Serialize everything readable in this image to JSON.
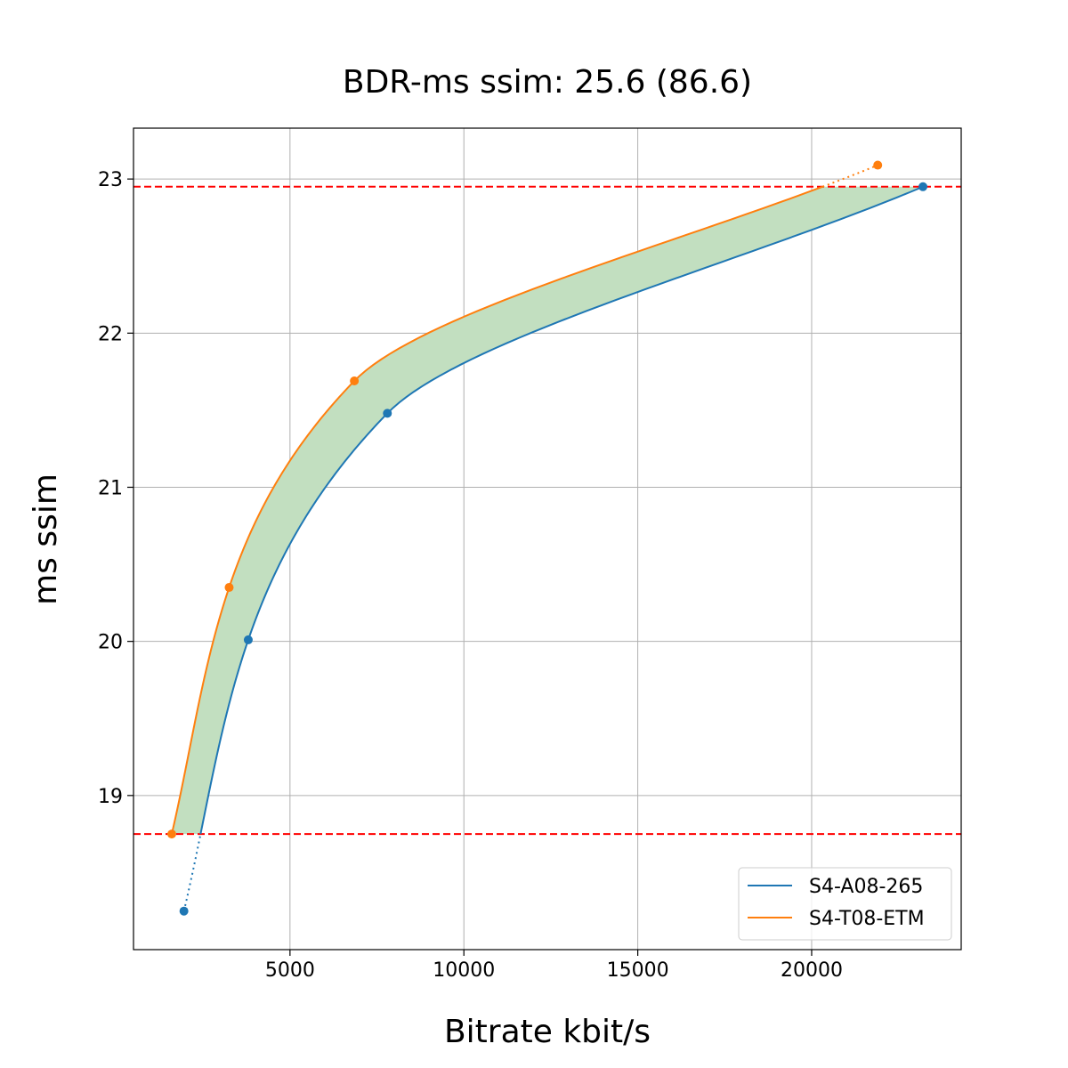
{
  "chart_data": {
    "type": "line",
    "title": "BDR-ms ssim: 25.6 (86.6)",
    "xlabel": "Bitrate kbit/s",
    "ylabel": "ms ssim",
    "xlim": [
      500,
      24300
    ],
    "ylim": [
      18.0,
      23.33
    ],
    "xticks": [
      5000,
      10000,
      15000,
      20000
    ],
    "yticks": [
      19,
      20,
      21,
      22,
      23
    ],
    "grid": true,
    "legend_position": "lower-right",
    "series": [
      {
        "name": "S4-A08-265",
        "color": "#1f77b4",
        "x": [
          1950,
          3800,
          7800,
          23200
        ],
        "y": [
          18.25,
          20.01,
          21.48,
          22.95
        ]
      },
      {
        "name": "S4-T08-ETM",
        "color": "#ff7f0e",
        "x": [
          1600,
          3250,
          6850,
          21900
        ],
        "y": [
          18.75,
          20.35,
          21.69,
          23.09
        ]
      }
    ],
    "reference_lines": {
      "color": "#ff0000",
      "y": [
        18.75,
        22.95
      ]
    },
    "fill_color": "#c2dfc0"
  }
}
